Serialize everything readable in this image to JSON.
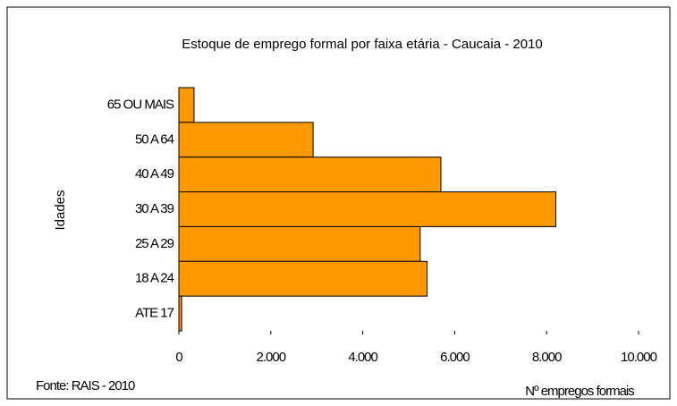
{
  "chart_data": {
    "type": "barh",
    "title": "Estoque de emprego formal por faixa etária - Caucaia - 2010",
    "xlabel": "Nº empregos formais",
    "ylabel": "Idades",
    "source": "Fonte: RAIS - 2010",
    "categories": [
      "65 OU MAIS",
      "50 A 64",
      "40 A 49",
      "30 A 39",
      "25 A 29",
      "18 A 24",
      "ATE 17"
    ],
    "values": [
      330,
      2920,
      5700,
      8200,
      5250,
      5400,
      60
    ],
    "color": "#ff9900",
    "xlim": [
      0,
      10000
    ],
    "xticks": [
      0,
      {
        "value": 2000,
        "label": "2.000"
      },
      {
        "value": 4000,
        "label": "4.000"
      },
      {
        "value": 6000,
        "label": "6.000"
      },
      {
        "value": 8000,
        "label": "8.000"
      },
      {
        "value": 10000,
        "label": "10.000"
      }
    ]
  }
}
